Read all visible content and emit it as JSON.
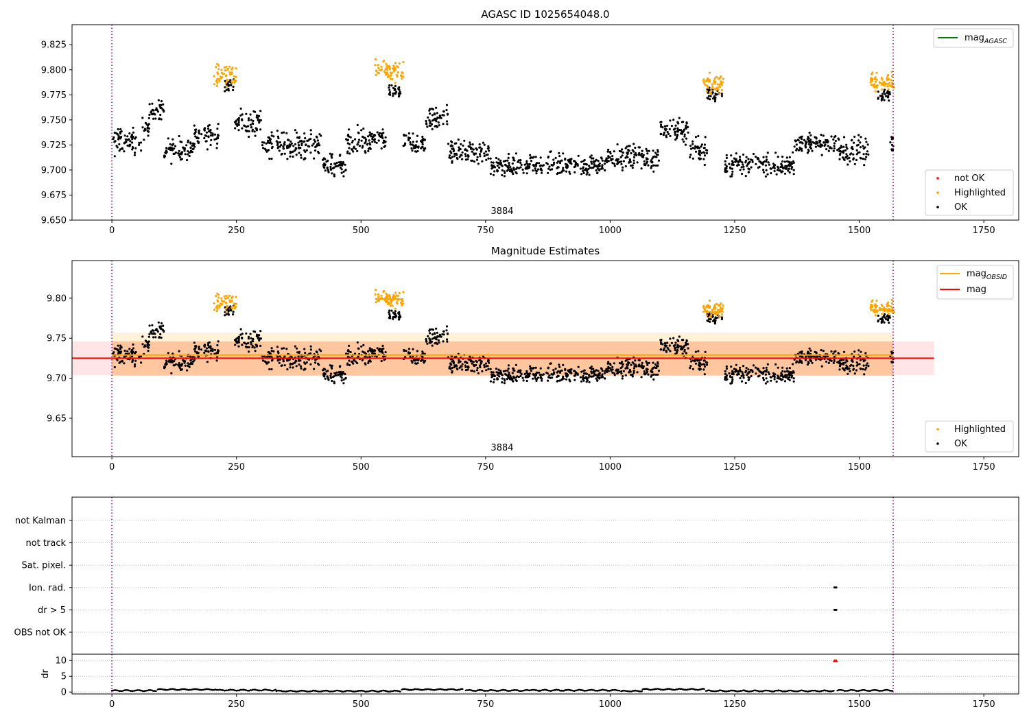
{
  "chart_data": [
    {
      "type": "scatter",
      "title": "AGASC ID 1025654048.0",
      "xlim": [
        -80,
        1820
      ],
      "ylim": [
        9.65,
        9.845
      ],
      "xticks": [
        0,
        250,
        500,
        750,
        1000,
        1250,
        1500,
        1750
      ],
      "yticks": [
        9.65,
        9.675,
        9.7,
        9.725,
        9.75,
        9.775,
        9.8,
        9.825
      ],
      "ytick_labels": [
        "9.650",
        "9.675",
        "9.700",
        "9.725",
        "9.750",
        "9.775",
        "9.800",
        "9.825"
      ],
      "obsid_label": {
        "text": "3884",
        "x": 785
      },
      "vlines_x": [
        0,
        1568
      ],
      "legend_top": {
        "placement": "top-right",
        "entries": [
          {
            "label": "mag",
            "subscript": "AGASC",
            "color": "#008000"
          }
        ]
      },
      "legend_bottom": {
        "placement": "lower-right",
        "entries": [
          {
            "label": "not OK",
            "color": "#ff0000"
          },
          {
            "label": "Highlighted",
            "color": "#ffa500"
          },
          {
            "label": "OK",
            "color": "#000000"
          }
        ]
      },
      "ok_segments": [
        {
          "x0": 0,
          "x1": 60,
          "y": 9.728,
          "spread": 0.011
        },
        {
          "x0": 60,
          "x1": 75,
          "y": 9.742,
          "spread": 0.01
        },
        {
          "x0": 75,
          "x1": 105,
          "y": 9.76,
          "spread": 0.008
        },
        {
          "x0": 105,
          "x1": 165,
          "y": 9.72,
          "spread": 0.01
        },
        {
          "x0": 165,
          "x1": 215,
          "y": 9.735,
          "spread": 0.01
        },
        {
          "x0": 225,
          "x1": 245,
          "y": 9.785,
          "spread": 0.006
        },
        {
          "x0": 245,
          "x1": 300,
          "y": 9.748,
          "spread": 0.01
        },
        {
          "x0": 300,
          "x1": 420,
          "y": 9.725,
          "spread": 0.011
        },
        {
          "x0": 420,
          "x1": 470,
          "y": 9.705,
          "spread": 0.009
        },
        {
          "x0": 470,
          "x1": 520,
          "y": 9.727,
          "spread": 0.012
        },
        {
          "x0": 520,
          "x1": 550,
          "y": 9.73,
          "spread": 0.008
        },
        {
          "x0": 555,
          "x1": 580,
          "y": 9.778,
          "spread": 0.005
        },
        {
          "x0": 585,
          "x1": 630,
          "y": 9.725,
          "spread": 0.01
        },
        {
          "x0": 630,
          "x1": 675,
          "y": 9.752,
          "spread": 0.011
        },
        {
          "x0": 675,
          "x1": 760,
          "y": 9.718,
          "spread": 0.01
        },
        {
          "x0": 760,
          "x1": 990,
          "y": 9.705,
          "spread": 0.009
        },
        {
          "x0": 990,
          "x1": 1100,
          "y": 9.712,
          "spread": 0.011
        },
        {
          "x0": 1100,
          "x1": 1160,
          "y": 9.74,
          "spread": 0.011
        },
        {
          "x0": 1160,
          "x1": 1195,
          "y": 9.72,
          "spread": 0.01
        },
        {
          "x0": 1195,
          "x1": 1225,
          "y": 9.776,
          "spread": 0.007
        },
        {
          "x0": 1230,
          "x1": 1370,
          "y": 9.705,
          "spread": 0.009
        },
        {
          "x0": 1370,
          "x1": 1460,
          "y": 9.727,
          "spread": 0.008
        },
        {
          "x0": 1460,
          "x1": 1520,
          "y": 9.72,
          "spread": 0.012
        },
        {
          "x0": 1535,
          "x1": 1562,
          "y": 9.775,
          "spread": 0.006
        },
        {
          "x0": 1562,
          "x1": 1570,
          "y": 9.725,
          "spread": 0.01
        }
      ],
      "highlighted_segments": [
        {
          "x0": 205,
          "x1": 250,
          "y": 9.795,
          "spread": 0.009
        },
        {
          "x0": 528,
          "x1": 585,
          "y": 9.798,
          "spread": 0.009
        },
        {
          "x0": 1185,
          "x1": 1228,
          "y": 9.785,
          "spread": 0.008
        },
        {
          "x0": 1522,
          "x1": 1570,
          "y": 9.788,
          "spread": 0.007
        }
      ]
    },
    {
      "type": "scatter",
      "title": "Magnitude Estimates",
      "xlim": [
        -80,
        1820
      ],
      "ylim": [
        9.602,
        9.847
      ],
      "xticks": [
        0,
        250,
        500,
        750,
        1000,
        1250,
        1500,
        1750
      ],
      "yticks": [
        9.65,
        9.7,
        9.75,
        9.8
      ],
      "ytick_labels": [
        "9.65",
        "9.70",
        "9.75",
        "9.80"
      ],
      "obsid_label": {
        "text": "3884",
        "x": 785
      },
      "vlines_x": [
        0,
        1568
      ],
      "mag": {
        "value": 9.725,
        "band": [
          9.704,
          9.746
        ],
        "x_range": [
          -80,
          1650
        ],
        "color": "#ff0000"
      },
      "mag_obsid": {
        "value": 9.729,
        "band_outer": [
          9.703,
          9.757
        ],
        "band_inner": [
          9.703,
          9.746
        ],
        "x_range": [
          0,
          1568
        ],
        "color": "#ffa500"
      },
      "highlight_markers": [
        {
          "x0": 530,
          "x1": 585,
          "y": 9.799
        },
        {
          "x0": 1185,
          "x1": 1228,
          "y": 9.783
        },
        {
          "x0": 1522,
          "x1": 1570,
          "y": 9.785
        }
      ],
      "legend_top": {
        "placement": "top-right",
        "entries": [
          {
            "label": "mag",
            "subscript": "OBSID",
            "color": "#ffa500"
          },
          {
            "label": "mag",
            "color": "#ff0000"
          }
        ]
      },
      "legend_bottom": {
        "placement": "lower-right",
        "entries": [
          {
            "label": "Highlighted",
            "color": "#ffa500"
          },
          {
            "label": "OK",
            "color": "#000000"
          }
        ]
      }
    },
    {
      "type": "scatter",
      "title": "",
      "xlim": [
        -80,
        1820
      ],
      "flag_rows": [
        "not Kalman",
        "not track",
        "Sat. pixel.",
        "Ion. rad.",
        "dr > 5",
        "OBS not OK"
      ],
      "flag_points": [
        {
          "row": "Ion. rad.",
          "x": [
            1450,
            1452,
            1454
          ]
        },
        {
          "row": "dr > 5",
          "x": [
            1450,
            1452,
            1454
          ]
        }
      ],
      "vlines_x": [
        0,
        1568
      ],
      "dr": {
        "ylabel": "dr",
        "ylim": [
          -0.6,
          12
        ],
        "yticks": [
          0,
          5,
          10
        ],
        "ytick_labels": [
          "0",
          "5",
          "10"
        ],
        "clipped_x": [
          1450,
          1452,
          1454
        ],
        "clipped_color": "#ff0000",
        "segments": [
          {
            "x0": 0,
            "x1": 90,
            "y": 0.45
          },
          {
            "x0": 92,
            "x1": 210,
            "y": 0.8
          },
          {
            "x0": 210,
            "x1": 330,
            "y": 0.6
          },
          {
            "x0": 330,
            "x1": 580,
            "y": 0.3
          },
          {
            "x0": 582,
            "x1": 705,
            "y": 0.8
          },
          {
            "x0": 710,
            "x1": 840,
            "y": 0.5
          },
          {
            "x0": 840,
            "x1": 1020,
            "y": 0.55
          },
          {
            "x0": 1022,
            "x1": 1065,
            "y": 0.3
          },
          {
            "x0": 1065,
            "x1": 1190,
            "y": 0.85
          },
          {
            "x0": 1192,
            "x1": 1450,
            "y": 0.35
          },
          {
            "x0": 1456,
            "x1": 1568,
            "y": 0.5
          }
        ]
      },
      "xticks": [
        0,
        250,
        500,
        750,
        1000,
        1250,
        1500,
        1750
      ]
    }
  ]
}
